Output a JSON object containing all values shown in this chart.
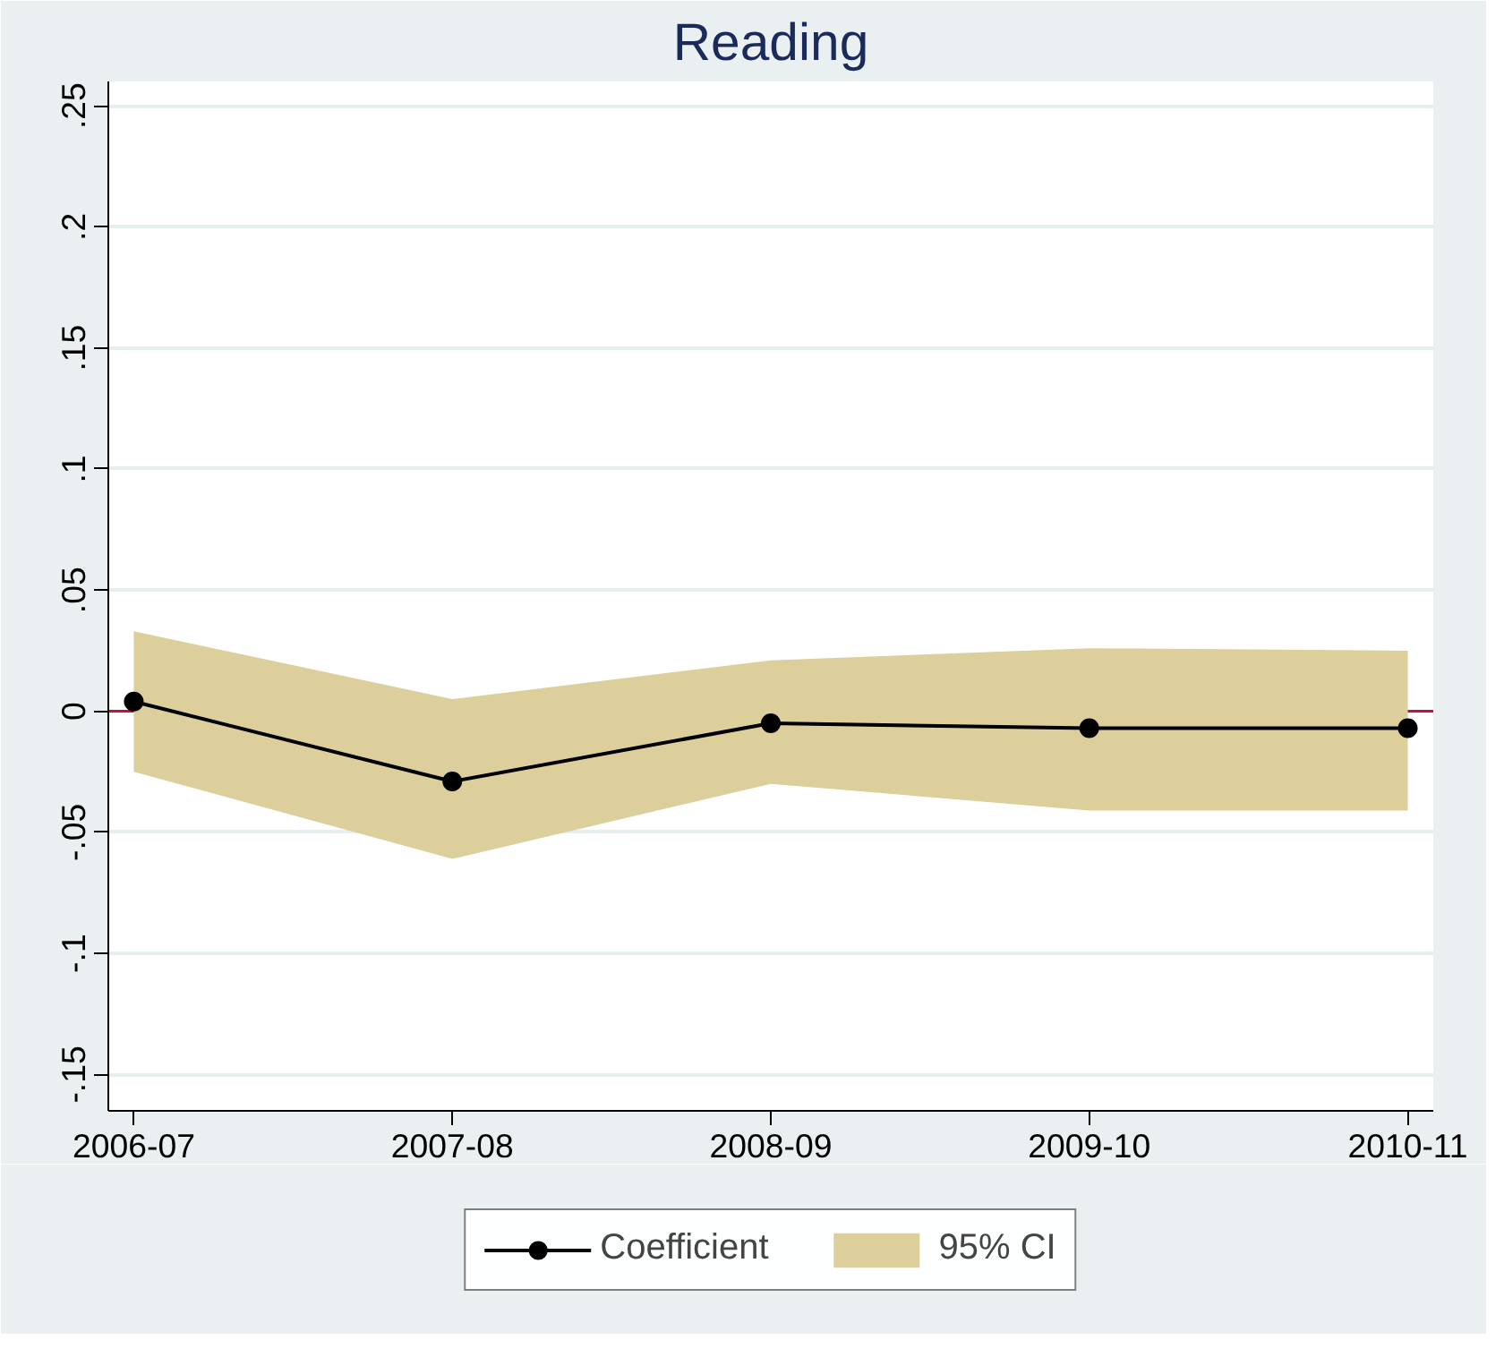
{
  "chart_data": {
    "type": "line",
    "title": "Reading",
    "categories": [
      "2006-07",
      "2007-08",
      "2008-09",
      "2009-10",
      "2010-11"
    ],
    "series": [
      {
        "name": "Coefficient",
        "type": "line",
        "color": "#000000",
        "marker": "circle",
        "values": [
          0.004,
          -0.029,
          -0.005,
          -0.007,
          -0.007
        ]
      },
      {
        "name": "95% CI",
        "type": "area",
        "color": "#dccf9c",
        "values": [
          null,
          null,
          null,
          null,
          null
        ],
        "lower": [
          -0.025,
          -0.061,
          -0.03,
          -0.041,
          -0.041
        ],
        "upper": [
          0.033,
          0.005,
          0.021,
          0.026,
          0.025
        ]
      }
    ],
    "ylim": [
      -0.165,
      0.26
    ],
    "yticks": [
      {
        "value": -0.15,
        "label": "-.15"
      },
      {
        "value": -0.1,
        "label": "-.1"
      },
      {
        "value": -0.05,
        "label": "-.05"
      },
      0,
      {
        "value": 0.05,
        "label": ".05"
      },
      {
        "value": 0.1,
        "label": ".1"
      },
      {
        "value": 0.15,
        "label": ".15"
      },
      {
        "value": 0.2,
        "label": ".2"
      },
      {
        "value": 0.25,
        "label": ".25"
      }
    ],
    "ref_lines": [
      {
        "axis": "y",
        "value": 0,
        "color": "#c0143c"
      }
    ],
    "grid": "y",
    "legend": "bottom"
  }
}
